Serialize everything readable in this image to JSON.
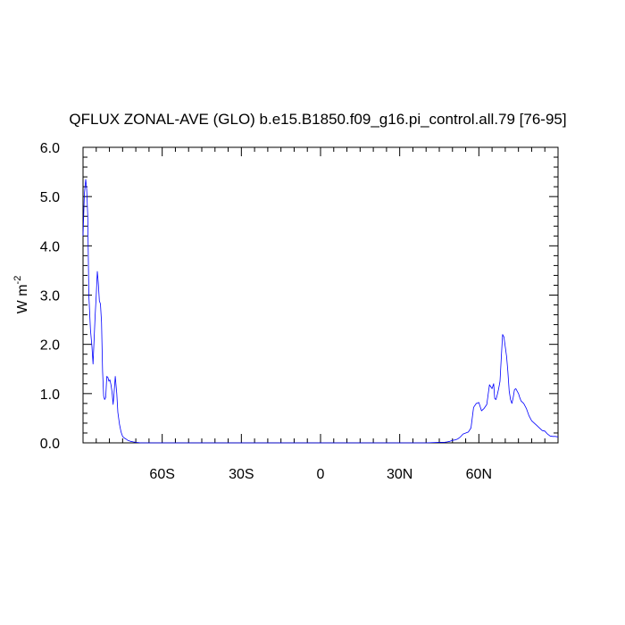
{
  "chart_data": {
    "type": "line",
    "title": "QFLUX ZONAL-AVE (GLO) b.e15.B1850.f09_g16.pi_control.all.79 [76-95]",
    "xlabel": "",
    "ylabel": "W m",
    "ylabel_superscript": "-2",
    "xlim": [
      -90,
      90
    ],
    "ylim": [
      0,
      6
    ],
    "grid": false,
    "legend": "none",
    "x_ticks": [
      {
        "value": -60,
        "label": "60S"
      },
      {
        "value": -30,
        "label": "30S"
      },
      {
        "value": 0,
        "label": "0"
      },
      {
        "value": 30,
        "label": "30N"
      },
      {
        "value": 60,
        "label": "60N"
      }
    ],
    "y_ticks": [
      {
        "value": 0,
        "label": "0.0"
      },
      {
        "value": 1,
        "label": "1.0"
      },
      {
        "value": 2,
        "label": "2.0"
      },
      {
        "value": 3,
        "label": "3.0"
      },
      {
        "value": 4,
        "label": "4.0"
      },
      {
        "value": 5,
        "label": "5.0"
      },
      {
        "value": 6,
        "label": "6.0"
      }
    ],
    "series": [
      {
        "color": "#0000ff",
        "x": [
          -90,
          -89.5,
          -89.0,
          -88.6,
          -88.2,
          -87.8,
          -87.2,
          -86.6,
          -86.2,
          -85.8,
          -85.4,
          -85.0,
          -84.6,
          -84.2,
          -83.8,
          -83.4,
          -83.0,
          -82.6,
          -82.2,
          -81.8,
          -81.4,
          -81.0,
          -80.6,
          -80.2,
          -79.8,
          -79.4,
          -79.0,
          -78.6,
          -78.2,
          -77.8,
          -77.2,
          -76.8,
          -76.2,
          -75.6,
          -75.0,
          -74.4,
          -73.8,
          -73.0,
          -72.0,
          -71.0,
          -70.0,
          -68.0,
          -66.0,
          -63.0,
          -60.0,
          -55.0,
          -50.0,
          -40.0,
          -30.0,
          -20.0,
          -10.0,
          0.0,
          10.0,
          20.0,
          30.0,
          40.0,
          45.0,
          47.0,
          48.0,
          49.0,
          50.0,
          51.0,
          52.0,
          53.0,
          54.0,
          55.0,
          56.0,
          57.0,
          58.0,
          59.0,
          60.0,
          61.0,
          62.0,
          63.0,
          64.0,
          65.0,
          65.6,
          66.0,
          66.5,
          67.0,
          67.5,
          68.0,
          68.5,
          69.0,
          69.5,
          70.0,
          70.5,
          71.0,
          71.5,
          72.0,
          72.5,
          73.0,
          73.5,
          74.0,
          74.5,
          75.0,
          75.5,
          76.0,
          77.0,
          78.0,
          79.0,
          80.0,
          81.0,
          82.0,
          83.0,
          84.0,
          85.0,
          86.0,
          87.0,
          88.0,
          89.0,
          90.0
        ],
        "y": [
          4.2,
          5.05,
          5.35,
          5.15,
          4.6,
          3.0,
          2.3,
          1.95,
          1.6,
          2.1,
          2.6,
          3.0,
          3.48,
          3.25,
          2.88,
          2.82,
          2.45,
          1.45,
          0.95,
          0.88,
          0.92,
          1.35,
          1.33,
          1.25,
          1.28,
          1.18,
          1.03,
          0.78,
          1.05,
          1.35,
          1.0,
          0.62,
          0.38,
          0.22,
          0.13,
          0.1,
          0.08,
          0.05,
          0.03,
          0.02,
          0.01,
          0.0,
          0.0,
          0.0,
          0.0,
          0.0,
          0.0,
          0.0,
          0.0,
          0.0,
          0.0,
          0.0,
          0.0,
          0.0,
          0.0,
          0.0,
          0.01,
          0.01,
          0.02,
          0.03,
          0.05,
          0.06,
          0.08,
          0.12,
          0.18,
          0.2,
          0.22,
          0.3,
          0.72,
          0.8,
          0.82,
          0.65,
          0.7,
          0.78,
          1.18,
          1.1,
          1.2,
          0.9,
          0.88,
          0.98,
          1.1,
          1.25,
          1.75,
          2.2,
          2.15,
          1.95,
          1.75,
          1.45,
          1.05,
          0.88,
          0.8,
          0.92,
          1.08,
          1.1,
          1.05,
          1.0,
          0.92,
          0.85,
          0.8,
          0.7,
          0.55,
          0.45,
          0.4,
          0.35,
          0.3,
          0.25,
          0.24,
          0.18,
          0.14,
          0.13,
          0.13,
          0.12
        ]
      }
    ]
  }
}
